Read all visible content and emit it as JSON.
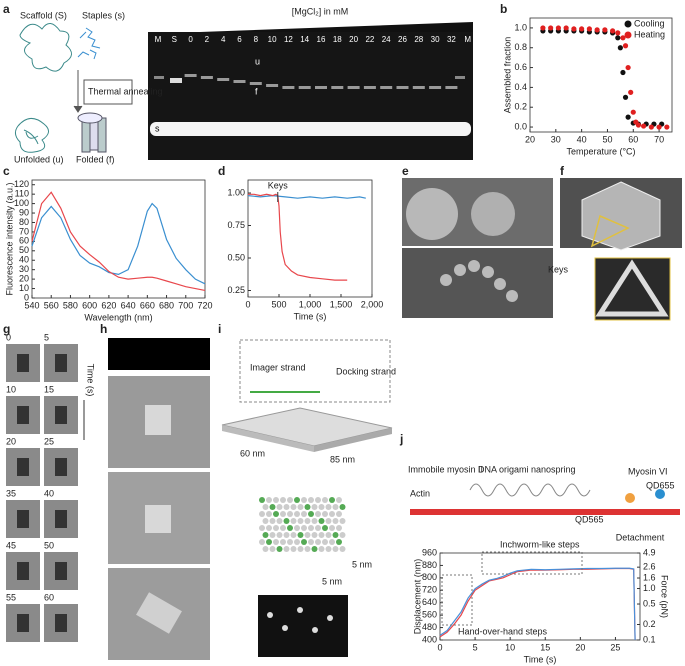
{
  "figure": {
    "panel_labels": [
      "a",
      "b",
      "c",
      "d",
      "e",
      "f",
      "g",
      "h",
      "i",
      "j"
    ],
    "a": {
      "scaffold": "Scaffold (S)",
      "staples": "Staples (s)",
      "annealing": "Thermal annealing",
      "unfolded": "Unfolded (u)",
      "folded": "Folded (f)",
      "gel_title": "[MgCl₂] in mM",
      "lanes": [
        "M",
        "S",
        0,
        2,
        4,
        6,
        8,
        10,
        12,
        14,
        16,
        18,
        20,
        22,
        24,
        26,
        28,
        30,
        32,
        "M"
      ],
      "band_u": "u",
      "band_f": "f",
      "band_s": "s"
    },
    "d": {
      "keys": "Keys"
    },
    "g": {
      "times": [
        0,
        5,
        10,
        15,
        20,
        25,
        35,
        40,
        45,
        50,
        55,
        60
      ],
      "axis": "Time (s)"
    },
    "i": {
      "imager": "Imager strand",
      "docking": "Docking strand",
      "width": "60 nm",
      "length": "85 nm",
      "spacing_v": "5 nm",
      "spacing_h": "5 nm"
    },
    "j": {
      "actin": "Actin",
      "myosin2": "Immobile myosin II",
      "spring": "DNA origami nanospring",
      "myosin6": "Myosin VI",
      "qd565": "QD565",
      "qd655": "QD655"
    }
  },
  "chart_data": [
    {
      "type": "scatter",
      "xlabel": "Temperature (°C)",
      "ylabel": "Assembled fraction",
      "xlim": [
        20,
        75
      ],
      "xticks": [
        20,
        30,
        40,
        50,
        60,
        70
      ],
      "ylim": [
        -0.05,
        1.1
      ],
      "yticks": [
        {
          "value": 0,
          "label": "0.0"
        },
        0.2,
        0.4,
        0.6,
        0.8,
        {
          "value": 1,
          "label": "1.0"
        }
      ],
      "legend": "upper right",
      "series": [
        {
          "name": "Cooling",
          "color": "#111111",
          "x": [
            25,
            28,
            31,
            34,
            37,
            40,
            43,
            46,
            49,
            52,
            54,
            55,
            56,
            57,
            58,
            60,
            62,
            65,
            68,
            71
          ],
          "values": [
            0.97,
            0.97,
            0.97,
            0.97,
            0.97,
            0.97,
            0.96,
            0.96,
            0.96,
            0.95,
            0.9,
            0.8,
            0.55,
            0.3,
            0.1,
            0.04,
            0.03,
            0.03,
            0.03,
            0.03
          ]
        },
        {
          "name": "Heating",
          "color": "#e02020",
          "x": [
            25,
            28,
            31,
            34,
            37,
            40,
            43,
            46,
            49,
            52,
            54,
            56,
            57,
            58,
            59,
            60,
            61,
            62,
            64,
            67,
            70,
            73
          ],
          "values": [
            1.0,
            1.0,
            1.0,
            1.0,
            0.99,
            0.99,
            0.99,
            0.98,
            0.98,
            0.97,
            0.95,
            0.9,
            0.82,
            0.6,
            0.35,
            0.15,
            0.05,
            0.02,
            0.01,
            0.0,
            0.0,
            0.0
          ]
        }
      ]
    },
    {
      "type": "line",
      "xlabel": "Wavelength (nm)",
      "ylabel": "Fluorescence intensity (a.u.)",
      "xlim": [
        540,
        720
      ],
      "xticks": [
        540,
        560,
        580,
        600,
        620,
        640,
        660,
        680,
        700,
        720
      ],
      "ylim": [
        0,
        125
      ],
      "yticks": [
        0,
        10,
        20,
        30,
        40,
        50,
        60,
        70,
        80,
        90,
        100,
        110,
        120
      ],
      "x": [
        540,
        550,
        560,
        570,
        580,
        590,
        600,
        610,
        620,
        630,
        640,
        650,
        660,
        665,
        670,
        680,
        690,
        700,
        710,
        720
      ],
      "series": [
        {
          "color": "#3a8fd0",
          "values": [
            55,
            85,
            97,
            85,
            62,
            45,
            37,
            33,
            27,
            25,
            30,
            55,
            92,
            100,
            95,
            62,
            42,
            30,
            20,
            15
          ]
        },
        {
          "color": "#e8474c",
          "values": [
            60,
            100,
            112,
            95,
            70,
            55,
            46,
            38,
            28,
            22,
            20,
            21,
            22,
            22,
            21,
            18,
            15,
            12,
            10,
            8
          ]
        }
      ]
    },
    {
      "type": "line",
      "xlabel": "Time (s)",
      "annotation": "Keys",
      "xlim": [
        0,
        2000
      ],
      "xticks": [
        0,
        500,
        {
          "value": 1000,
          "label": "1,000"
        },
        {
          "value": 1500,
          "label": "1,500"
        },
        {
          "value": 2000,
          "label": "2,000"
        }
      ],
      "ylim": [
        0.2,
        1.1
      ],
      "yticks": [
        0.25,
        {
          "value": 0.5,
          "label": "0.50"
        },
        0.75,
        {
          "value": 1,
          "label": "1.00"
        }
      ],
      "series": [
        {
          "color": "#3a8fd0",
          "x": [
            0,
            200,
            400,
            600,
            800,
            1000,
            1200,
            1400,
            1600,
            1800,
            1900
          ],
          "values": [
            0.98,
            0.97,
            0.98,
            0.97,
            0.96,
            0.97,
            0.96,
            0.97,
            0.96,
            0.97,
            0.96
          ]
        },
        {
          "color": "#e8474c",
          "x": [
            0,
            100,
            200,
            300,
            400,
            450,
            480,
            500,
            520,
            550,
            600,
            700,
            800,
            1000,
            1200,
            1400,
            1600
          ],
          "values": [
            0.99,
            0.99,
            0.98,
            0.99,
            0.98,
            0.99,
            0.98,
            0.9,
            0.7,
            0.55,
            0.45,
            0.4,
            0.37,
            0.35,
            0.34,
            0.33,
            0.33
          ]
        }
      ]
    },
    {
      "type": "line",
      "xlabel": "Time (s)",
      "ylabel": "Displacement (nm)",
      "y2label": "Force (pN)",
      "annotations": [
        "Inchworm-like steps",
        "Hand-over-hand steps",
        "Detachment"
      ],
      "xlim": [
        0,
        28.5
      ],
      "xticks": [
        0,
        5,
        10,
        15,
        20,
        25
      ],
      "ylim": [
        400,
        960
      ],
      "yticks": [
        400,
        480,
        560,
        640,
        720,
        800,
        880,
        960
      ],
      "y2lim": [
        0.1,
        4.9
      ],
      "y2log": true,
      "y2ticks": [
        0.1,
        0.2,
        0.5,
        {
          "value": 1,
          "label": "1.0"
        },
        1.6,
        2.6,
        4.9
      ],
      "x": [
        0,
        1,
        2,
        3,
        4,
        5,
        6,
        7,
        8,
        9,
        10,
        11,
        12,
        13,
        15,
        17,
        19,
        21,
        23,
        25,
        27,
        27.6,
        27.8
      ],
      "series": [
        {
          "color": "#e8474c",
          "values": [
            420,
            450,
            500,
            560,
            650,
            720,
            750,
            780,
            790,
            800,
            820,
            840,
            845,
            850,
            850,
            852,
            855,
            855,
            858,
            860,
            860,
            855,
            400
          ]
        },
        {
          "color": "#4a90d9",
          "values": [
            430,
            460,
            520,
            580,
            670,
            730,
            760,
            785,
            795,
            810,
            830,
            845,
            850,
            855,
            852,
            855,
            858,
            860,
            860,
            862,
            862,
            858,
            400
          ]
        }
      ]
    }
  ]
}
